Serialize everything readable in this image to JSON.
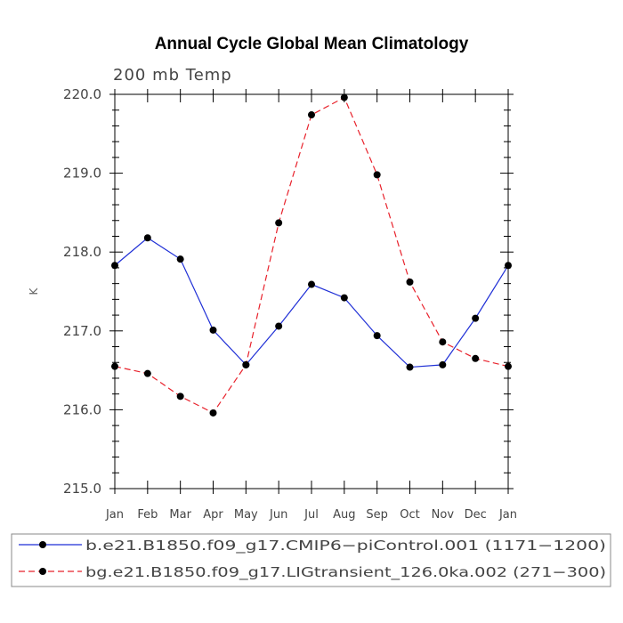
{
  "chart_data": {
    "type": "line",
    "title": "Annual Cycle Global Mean Climatology",
    "subtitle": "200 mb Temp",
    "xlabel": "",
    "ylabel": "K",
    "categories": [
      "Jan",
      "Feb",
      "Mar",
      "Apr",
      "May",
      "Jun",
      "Jul",
      "Aug",
      "Sep",
      "Oct",
      "Nov",
      "Dec",
      "Jan"
    ],
    "ylim": [
      215.0,
      220.0
    ],
    "yticks": [
      215.0,
      216.0,
      217.0,
      218.0,
      219.0,
      220.0
    ],
    "ytick_labels": [
      "215.0",
      "216.0",
      "217.0",
      "218.0",
      "219.0",
      "220.0"
    ],
    "grid": false,
    "legend_position": "bottom",
    "series": [
      {
        "name": "b.e21.B1850.f09_g17.CMIP6−piControl.001 (1171−1200)",
        "color": "#1f2fd6",
        "dash": "solid",
        "marker": "filled-circle",
        "values": [
          217.83,
          218.18,
          217.91,
          217.01,
          216.57,
          217.06,
          217.59,
          217.42,
          216.94,
          216.54,
          216.57,
          217.16,
          217.83
        ]
      },
      {
        "name": "bg.e21.B1850.f09_g17.LIGtransient_126.0ka.002 (271−300)",
        "color": "#e8212b",
        "dash": "dashed",
        "marker": "filled-circle",
        "values": [
          216.55,
          216.46,
          216.17,
          215.96,
          216.57,
          218.37,
          219.74,
          219.96,
          218.98,
          217.62,
          216.86,
          216.65,
          216.55
        ]
      }
    ]
  }
}
